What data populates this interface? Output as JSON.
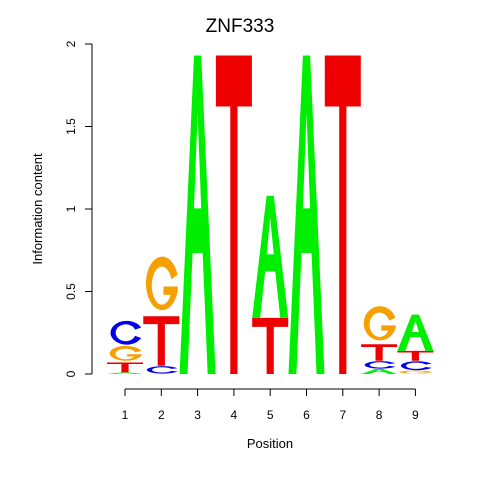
{
  "chart_data": {
    "type": "sequence-logo",
    "title": "ZNF333",
    "xlabel": "Position",
    "ylabel": "Information content",
    "ylim": [
      0,
      2
    ],
    "yticks": [
      "0",
      "0.5",
      "1",
      "1.5",
      "2"
    ],
    "positions": [
      "1",
      "2",
      "3",
      "4",
      "5",
      "6",
      "7",
      "8",
      "9"
    ],
    "colors": {
      "A": "#00ee00",
      "C": "#0000ee",
      "G": "#f5a000",
      "T": "#ee0000"
    },
    "stacks": [
      [
        {
          "letter": "A",
          "height": 0.01
        },
        {
          "letter": "T",
          "height": 0.06
        },
        {
          "letter": "G",
          "height": 0.1
        },
        {
          "letter": "C",
          "height": 0.16
        }
      ],
      [
        {
          "letter": "A",
          "height": 0.0
        },
        {
          "letter": "C",
          "height": 0.05
        },
        {
          "letter": "T",
          "height": 0.3
        },
        {
          "letter": "G",
          "height": 0.36
        }
      ],
      [
        {
          "letter": "A",
          "height": 1.93
        }
      ],
      [
        {
          "letter": "T",
          "height": 1.93
        }
      ],
      [
        {
          "letter": "T",
          "height": 0.34
        },
        {
          "letter": "A",
          "height": 0.74
        }
      ],
      [
        {
          "letter": "A",
          "height": 1.93
        }
      ],
      [
        {
          "letter": "T",
          "height": 1.93
        }
      ],
      [
        {
          "letter": "A",
          "height": 0.03
        },
        {
          "letter": "C",
          "height": 0.05
        },
        {
          "letter": "T",
          "height": 0.1
        },
        {
          "letter": "G",
          "height": 0.23
        }
      ],
      [
        {
          "letter": "G",
          "height": 0.02
        },
        {
          "letter": "C",
          "height": 0.06
        },
        {
          "letter": "T",
          "height": 0.06
        },
        {
          "letter": "A",
          "height": 0.22
        }
      ]
    ]
  }
}
